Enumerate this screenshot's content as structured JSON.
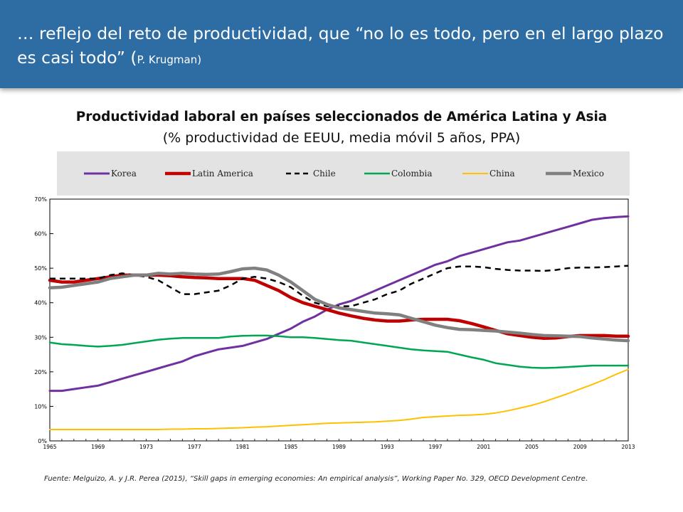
{
  "header": {
    "title_main": "… reflejo del reto de productividad, que “no lo es todo, pero en el largo plazo es casi todo” (",
    "title_small": "P. Krugman",
    "title_close": ")"
  },
  "chart": {
    "title": "Productividad laboral en países seleccionados de América Latina y Asia",
    "subtitle": "(% productividad de EEUU, media móvil 5 años, PPA)"
  },
  "source": "Fuente: Melguizo, A. y J.R. Perea (2015), “Skill gaps in emerging economies: An empirical analysis”,  Working Paper No. 329, OECD Development Centre.",
  "chart_data": {
    "type": "line",
    "x": [
      1965,
      1966,
      1967,
      1968,
      1969,
      1970,
      1971,
      1972,
      1973,
      1974,
      1975,
      1976,
      1977,
      1978,
      1979,
      1980,
      1981,
      1982,
      1983,
      1984,
      1985,
      1986,
      1987,
      1988,
      1989,
      1990,
      1991,
      1992,
      1993,
      1994,
      1995,
      1996,
      1997,
      1998,
      1999,
      2000,
      2001,
      2002,
      2003,
      2004,
      2005,
      2006,
      2007,
      2008,
      2009,
      2010,
      2011,
      2012,
      2013
    ],
    "xticks": [
      "1965",
      "1969",
      "1973",
      "1977",
      "1981",
      "1985",
      "1989",
      "1993",
      "1997",
      "2001",
      "2005",
      "2009",
      "2013"
    ],
    "yticks": [
      "0%",
      "10%",
      "20%",
      "30%",
      "40%",
      "50%",
      "60%",
      "70%"
    ],
    "ylim": [
      0,
      70
    ],
    "legend_position": "top",
    "grid": false,
    "series": [
      {
        "name": "Korea",
        "color": "#7030a0",
        "dash": "solid",
        "width": 3,
        "values": [
          14.5,
          14.5,
          15,
          15.5,
          16,
          17,
          18,
          19,
          20,
          21,
          22,
          23,
          24.5,
          25.5,
          26.5,
          27,
          27.5,
          28.5,
          29.5,
          31,
          32.5,
          34.5,
          36,
          38,
          39.5,
          40.5,
          42,
          43.5,
          45,
          46.5,
          48,
          49.5,
          51,
          52,
          53.5,
          54.5,
          55.5,
          56.5,
          57.5,
          58,
          59,
          60,
          61,
          62,
          63,
          64,
          64.5,
          64.8,
          65
        ]
      },
      {
        "name": "Latin America",
        "color": "#c00000",
        "dash": "solid",
        "width": 4.5,
        "values": [
          46.5,
          46,
          46,
          46.5,
          47,
          47.5,
          48,
          48,
          48,
          48,
          47.8,
          47.5,
          47.3,
          47.2,
          47,
          47,
          47,
          46.5,
          45,
          43.5,
          41.5,
          40,
          39,
          38,
          37,
          36.2,
          35.5,
          35,
          34.7,
          34.7,
          35,
          35.2,
          35.2,
          35.2,
          34.8,
          34,
          33,
          32,
          31,
          30.5,
          30,
          29.7,
          29.8,
          30.2,
          30.5,
          30.5,
          30.5,
          30.3,
          30.3
        ]
      },
      {
        "name": "Chile",
        "color": "#000000",
        "dash": "dashed",
        "width": 2.5,
        "values": [
          47,
          47,
          47,
          47,
          47,
          48,
          48.5,
          48,
          47.5,
          46.5,
          44.5,
          42.5,
          42.5,
          43,
          43.5,
          45,
          47,
          47.5,
          47,
          46,
          44.5,
          42,
          40,
          39,
          39,
          39,
          40,
          41,
          42.5,
          43.5,
          45.5,
          47,
          48.5,
          50,
          50.5,
          50.5,
          50.3,
          49.8,
          49.5,
          49.3,
          49.3,
          49.2,
          49.5,
          50,
          50.2,
          50.2,
          50.3,
          50.5,
          50.7
        ]
      },
      {
        "name": "Colombia",
        "color": "#00a651",
        "dash": "solid",
        "width": 2.5,
        "values": [
          28.5,
          28,
          27.8,
          27.5,
          27.3,
          27.5,
          27.8,
          28.3,
          28.8,
          29.3,
          29.6,
          29.8,
          29.8,
          29.8,
          29.8,
          30.2,
          30.4,
          30.5,
          30.5,
          30.3,
          30,
          30,
          29.8,
          29.5,
          29.2,
          29,
          28.5,
          28,
          27.5,
          27,
          26.5,
          26.2,
          26,
          25.8,
          25,
          24.2,
          23.5,
          22.5,
          22,
          21.5,
          21.2,
          21.1,
          21.2,
          21.4,
          21.6,
          21.8,
          21.8,
          21.8,
          21.8
        ]
      },
      {
        "name": "China",
        "color": "#ffc000",
        "dash": "solid",
        "width": 2,
        "values": [
          3.3,
          3.3,
          3.3,
          3.3,
          3.3,
          3.3,
          3.3,
          3.3,
          3.3,
          3.3,
          3.4,
          3.4,
          3.5,
          3.5,
          3.6,
          3.7,
          3.8,
          4,
          4.1,
          4.3,
          4.5,
          4.7,
          4.9,
          5.1,
          5.2,
          5.3,
          5.4,
          5.5,
          5.7,
          5.9,
          6.3,
          6.8,
          7,
          7.2,
          7.4,
          7.5,
          7.7,
          8.1,
          8.7,
          9.5,
          10.3,
          11.3,
          12.5,
          13.7,
          15,
          16.3,
          17.7,
          19.3,
          20.7
        ]
      },
      {
        "name": "Mexico",
        "color": "#808080",
        "dash": "solid",
        "width": 4.5,
        "values": [
          44.3,
          44.5,
          45,
          45.5,
          46,
          47,
          47.5,
          48,
          48,
          48.5,
          48.3,
          48.5,
          48.3,
          48.2,
          48.3,
          49,
          49.8,
          50,
          49.5,
          48,
          46,
          43.5,
          41,
          39.5,
          38.5,
          38,
          37.5,
          37,
          36.8,
          36.5,
          35.5,
          34.5,
          33.5,
          32.8,
          32.3,
          32.2,
          32,
          31.8,
          31.5,
          31.2,
          30.8,
          30.5,
          30.4,
          30.3,
          30.2,
          29.8,
          29.5,
          29.2,
          29
        ]
      }
    ]
  }
}
